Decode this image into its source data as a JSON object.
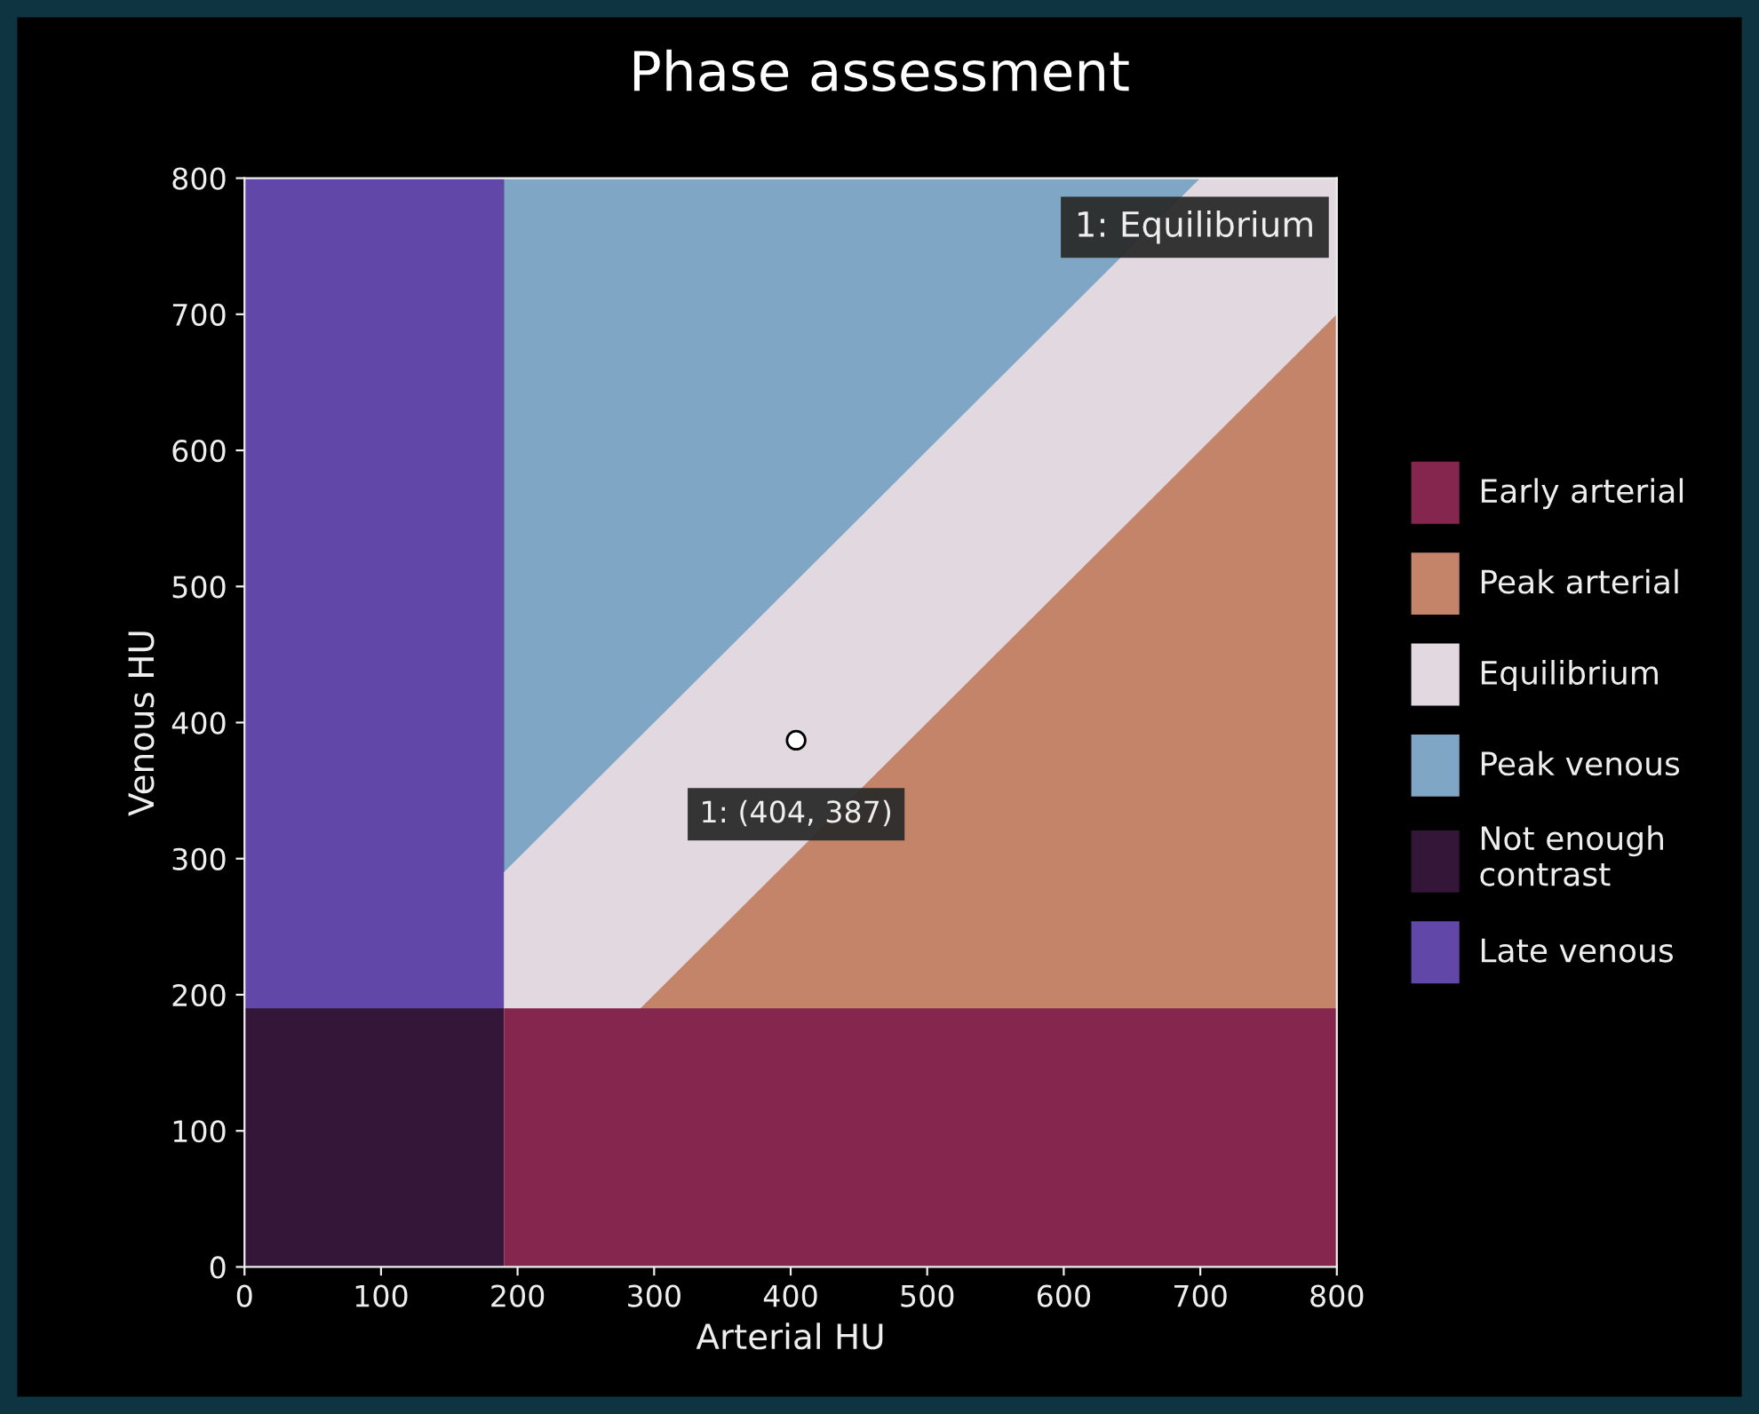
{
  "chart_data": {
    "type": "area",
    "title": "Phase assessment",
    "xlabel": "Arterial HU",
    "ylabel": "Venous HU",
    "series": [
      {
        "name": "Late venous",
        "color": "#6147a8",
        "x": [
          0,
          190
        ],
        "values": [
          800,
          800
        ]
      },
      {
        "name": "Not enough contrast",
        "color": "#331638",
        "x": [
          0,
          190
        ],
        "values": [
          190,
          190
        ]
      },
      {
        "name": "Peak venous",
        "color": "#7fa6c4",
        "x": [
          190,
          700
        ],
        "values": [
          800,
          800
        ]
      },
      {
        "name": "Equilibrium",
        "color": "#e2d9e0",
        "x": [
          190,
          290,
          700,
          800
        ],
        "values": [
          290,
          390,
          800,
          800
        ]
      },
      {
        "name": "Peak arterial",
        "color": "#c4846a",
        "x": [
          290,
          700,
          800
        ],
        "values": [
          190,
          600,
          700
        ]
      },
      {
        "name": "Early arterial",
        "color": "#85264f",
        "x": [
          190,
          800
        ],
        "values": [
          190,
          190
        ]
      },
      {
        "type": "scatter",
        "color": "#ffffff",
        "x": [
          404
        ],
        "values": [
          387
        ],
        "marker": "circle"
      }
    ],
    "annotations": [
      "1: Equilibrium",
      {
        "text": "1: (404, 387)",
        "x": 404,
        "y": 387
      }
    ],
    "xlim": [
      0,
      800
    ],
    "ylim": [
      0,
      800
    ],
    "xticks": [
      0,
      100,
      200,
      300,
      400,
      500,
      600,
      700,
      800
    ],
    "yticks": [
      0,
      100,
      200,
      300,
      400,
      500,
      600,
      700,
      800
    ],
    "grid": false,
    "legend": "right"
  }
}
